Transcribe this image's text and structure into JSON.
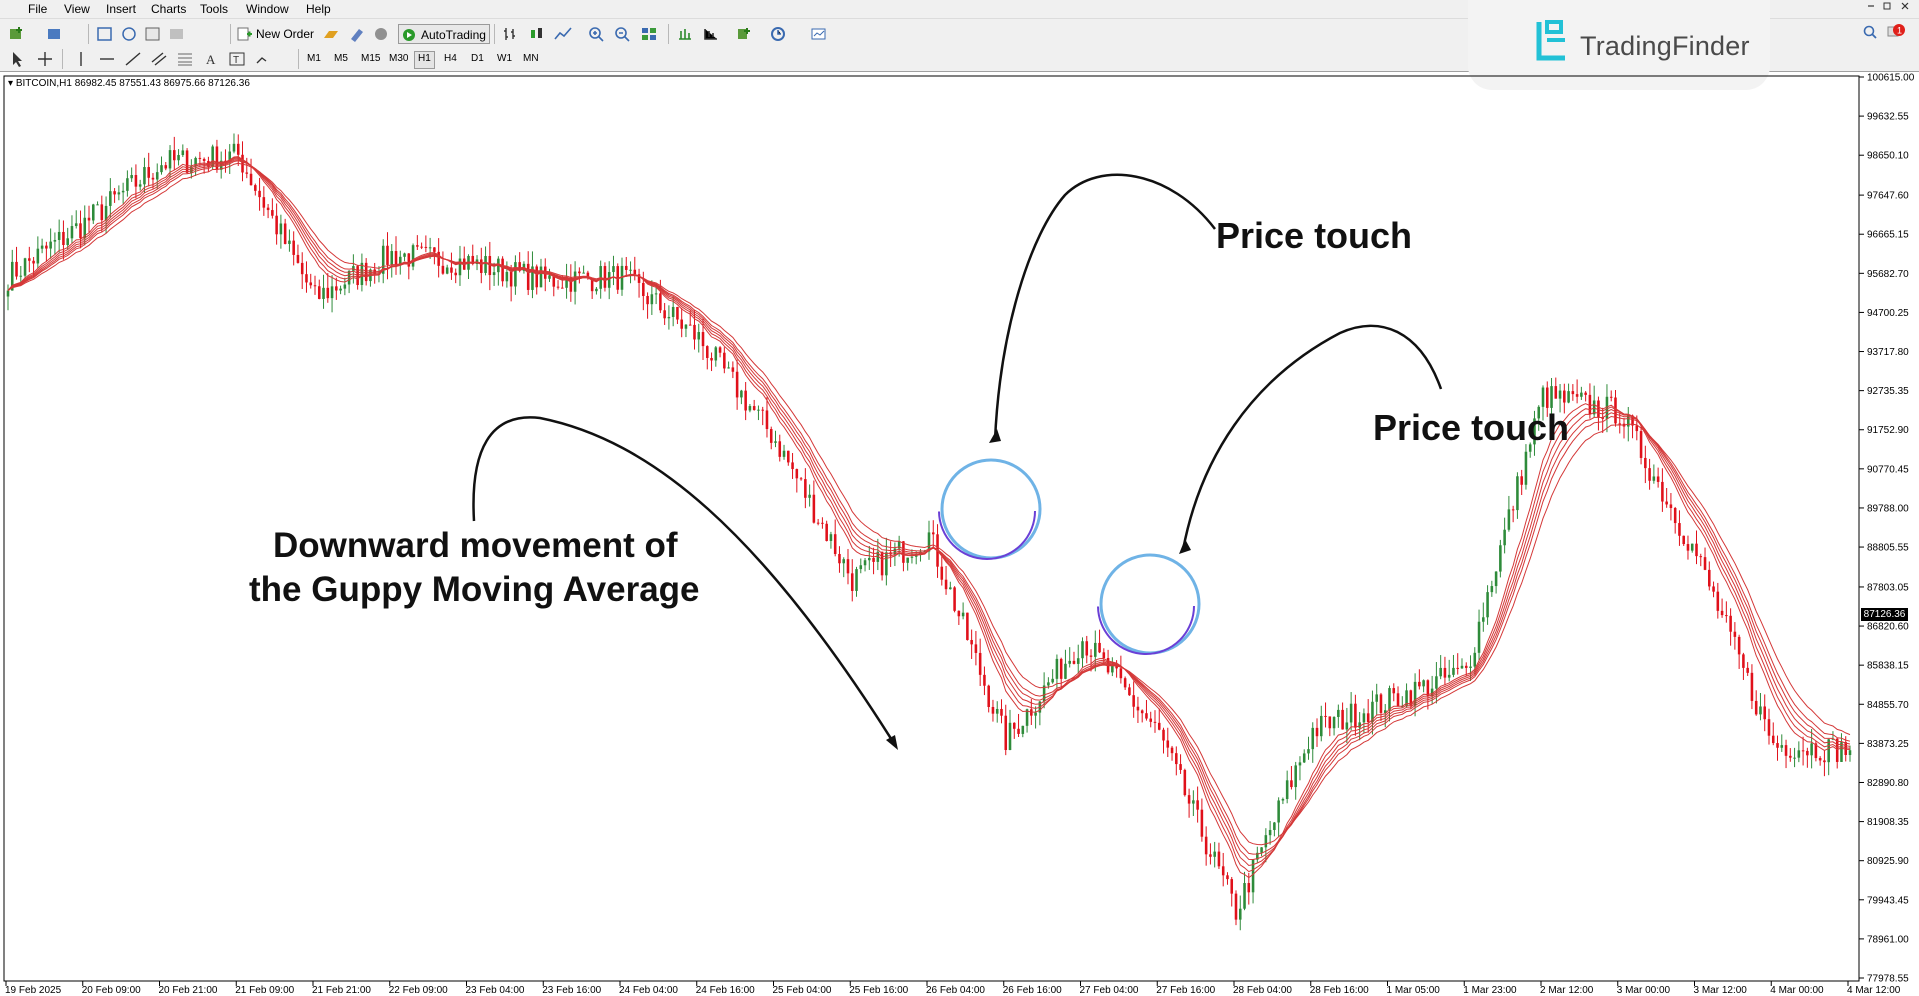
{
  "menu": [
    "File",
    "View",
    "Insert",
    "Charts",
    "Tools",
    "Window",
    "Help"
  ],
  "toolbar": {
    "new_order_label": "New Order",
    "autotrading_label": "AutoTrading",
    "timeframes": [
      "M1",
      "M5",
      "M15",
      "M30",
      "H1",
      "H4",
      "D1",
      "W1",
      "MN"
    ],
    "active_timeframe": "H1"
  },
  "brand": {
    "name": "TradingFinder",
    "accent": "#22c1d6"
  },
  "symbol_info": "BITCOIN,H1  86982.45 87551.43 86975.66 87126.36",
  "current_price": "87126.36",
  "price_axis": [
    "100615.00",
    "99632.55",
    "98650.10",
    "97647.60",
    "96665.15",
    "95682.70",
    "94700.25",
    "93717.80",
    "92735.35",
    "91752.90",
    "90770.45",
    "89788.00",
    "88805.55",
    "87803.05",
    "86820.60",
    "85838.15",
    "84855.70",
    "83873.25",
    "82890.80",
    "81908.35",
    "80925.90",
    "79943.45",
    "78961.00",
    "77978.55"
  ],
  "time_axis": [
    "19 Feb 2025",
    "20 Feb 09:00",
    "20 Feb 21:00",
    "21 Feb 09:00",
    "21 Feb 21:00",
    "22 Feb 09:00",
    "23 Feb 04:00",
    "23 Feb 16:00",
    "24 Feb 04:00",
    "24 Feb 16:00",
    "25 Feb 04:00",
    "25 Feb 16:00",
    "26 Feb 04:00",
    "26 Feb 16:00",
    "27 Feb 04:00",
    "27 Feb 16:00",
    "28 Feb 04:00",
    "28 Feb 16:00",
    "1 Mar 05:00",
    "1 Mar 23:00",
    "2 Mar 12:00",
    "3 Mar 00:00",
    "3 Mar 12:00",
    "4 Mar 00:00",
    "4 Mar 12:00"
  ],
  "annotations": {
    "price_touch_1": "Price touch",
    "price_touch_2": "Price touch",
    "downward_line1": "Downward movement of",
    "downward_line2": "the Guppy Moving Average"
  },
  "colors": {
    "bull": "#2e8b3a",
    "bear": "#e0101a",
    "guppy": "#d43838"
  },
  "chart_data": {
    "type": "candlestick",
    "symbol": "BITCOIN",
    "timeframe": "H1",
    "ylim": [
      77978.55,
      100615.0
    ],
    "close_path": [
      [
        "19 Feb 2025",
        95600
      ],
      [
        "20 Feb 09:00",
        96950
      ],
      [
        "20 Feb 21:00",
        98450
      ],
      [
        "21 Feb 09:00",
        98650
      ],
      [
        "21 Feb 21:00",
        95050
      ],
      [
        "22 Feb 09:00",
        96150
      ],
      [
        "23 Feb 04:00",
        95950
      ],
      [
        "23 Feb 16:00",
        95500
      ],
      [
        "24 Feb 04:00",
        95600
      ],
      [
        "24 Feb 16:00",
        94050
      ],
      [
        "25 Feb 04:00",
        91500
      ],
      [
        "25 Feb 16:00",
        88000
      ],
      [
        "26 Feb 04:00",
        89100
      ],
      [
        "26 Feb 16:00",
        83950
      ],
      [
        "27 Feb 04:00",
        86500
      ],
      [
        "27 Feb 16:00",
        84100
      ],
      [
        "28 Feb 04:00",
        79650
      ],
      [
        "28 Feb 16:00",
        84200
      ],
      [
        "1 Mar 05:00",
        84950
      ],
      [
        "1 Mar 23:00",
        85700
      ],
      [
        "2 Mar 12:00",
        92600
      ],
      [
        "3 Mar 00:00",
        92200
      ],
      [
        "3 Mar 12:00",
        88600
      ],
      [
        "4 Mar 00:00",
        83850
      ],
      [
        "4 Mar 12:00",
        83700
      ]
    ],
    "indicator": "Guppy Multiple Moving Average",
    "grid": false
  }
}
